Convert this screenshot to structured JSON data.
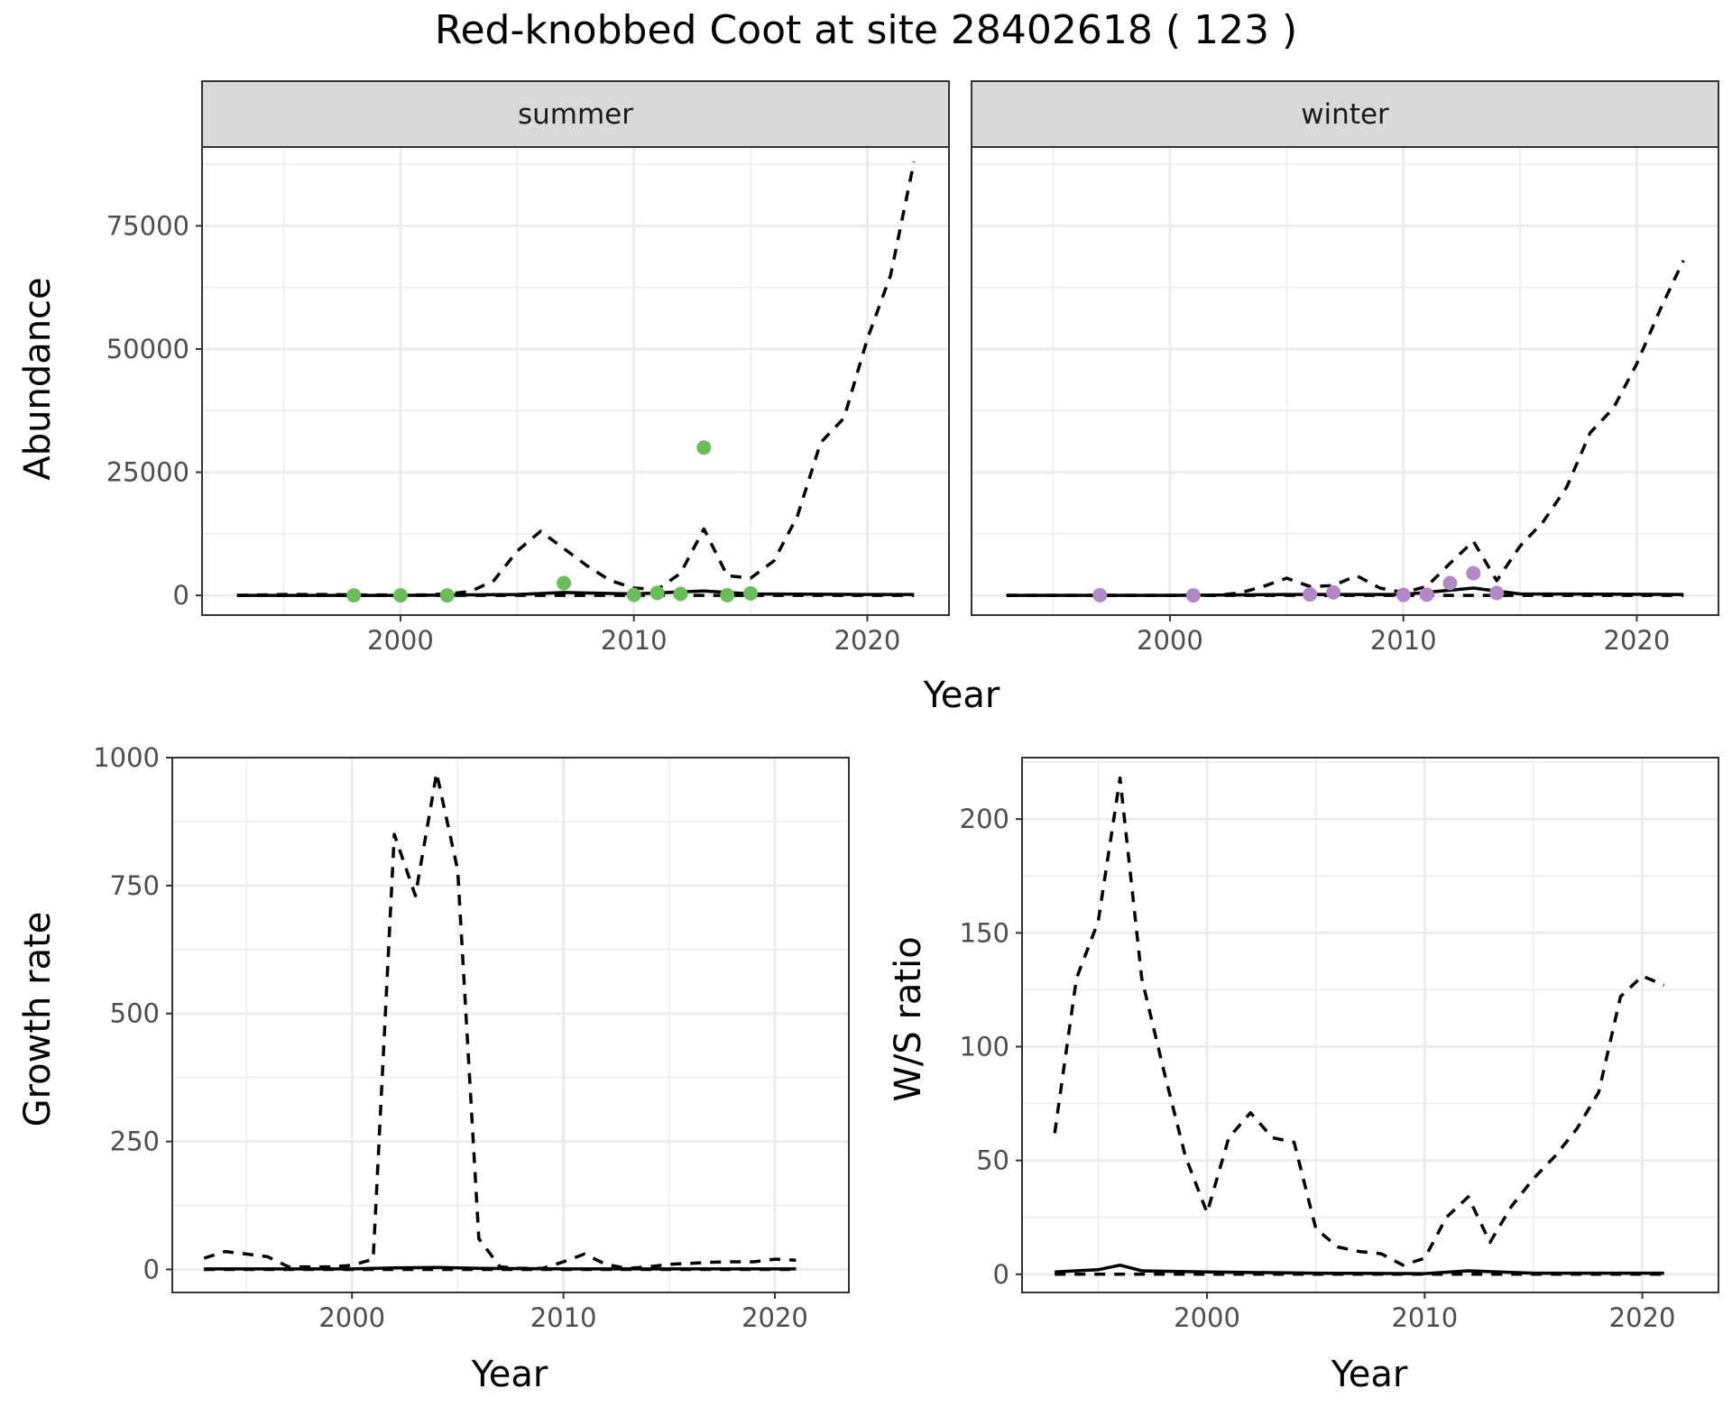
{
  "title": "Red-knobbed Coot at site 28402618 ( 123 )",
  "colors": {
    "summer_points": "#6bbd5a",
    "winter_points": "#b388c6",
    "strip": "#d9d9d9",
    "grid": "#ebebeb",
    "line": "#000000"
  },
  "chart_data": [
    {
      "id": "abundance",
      "type": "line",
      "title": "",
      "xlabel": "Year",
      "ylabel": "Abundance",
      "xlim": [
        1991.5,
        2023.5
      ],
      "ylim": [
        -4000,
        91000
      ],
      "x_ticks": [
        2000,
        2010,
        2020
      ],
      "y_ticks": [
        0,
        25000,
        50000,
        75000
      ],
      "y_tick_labels": [
        "0",
        "25000",
        "50000",
        "75000"
      ],
      "grid": true,
      "facets": [
        {
          "name": "summer",
          "upper_dashed": {
            "x": [
              1993,
              1994,
              1995,
              1996,
              1997,
              1998,
              1999,
              2000,
              2001,
              2002,
              2003,
              2004,
              2005,
              2006,
              2007,
              2008,
              2009,
              2010,
              2011,
              2012,
              2013,
              2014,
              2015,
              2016,
              2017,
              2018,
              2019,
              2020,
              2021,
              2022
            ],
            "y": [
              0,
              100,
              200,
              200,
              200,
              100,
              100,
              100,
              100,
              300,
              800,
              3000,
              9000,
              13000,
              9500,
              6000,
              3000,
              1500,
              1200,
              4500,
              13500,
              4000,
              3500,
              7000,
              16000,
              31000,
              36000,
              52000,
              65000,
              88000
            ]
          },
          "fitted_solid": {
            "x": [
              1993,
              1995,
              2000,
              2005,
              2007,
              2010,
              2013,
              2015,
              2020,
              2022
            ],
            "y": [
              0,
              0,
              0,
              200,
              600,
              300,
              900,
              300,
              200,
              200
            ]
          },
          "lower_dashed": {
            "x": [
              1993,
              2022
            ],
            "y": [
              0,
              0
            ]
          },
          "points": {
            "x": [
              1998,
              2000,
              2002,
              2007,
              2010,
              2011,
              2012,
              2013,
              2014,
              2015
            ],
            "y": [
              0,
              0,
              0,
              2500,
              100,
              500,
              300,
              30000,
              50,
              400
            ]
          }
        },
        {
          "name": "winter",
          "upper_dashed": {
            "x": [
              1993,
              1994,
              1995,
              1996,
              1997,
              1998,
              1999,
              2000,
              2001,
              2002,
              2003,
              2004,
              2005,
              2006,
              2007,
              2008,
              2009,
              2010,
              2011,
              2012,
              2013,
              2014,
              2015,
              2016,
              2017,
              2018,
              2019,
              2020,
              2021,
              2022
            ],
            "y": [
              0,
              0,
              0,
              0,
              0,
              0,
              0,
              0,
              0,
              0,
              500,
              1800,
              3500,
              1800,
              2000,
              4000,
              1500,
              600,
              1800,
              6500,
              11000,
              3000,
              10000,
              15000,
              22000,
              33000,
              38000,
              47000,
              58000,
              68000
            ]
          },
          "fitted_solid": {
            "x": [
              1993,
              2000,
              2005,
              2010,
              2013,
              2015,
              2022
            ],
            "y": [
              0,
              0,
              200,
              200,
              1500,
              300,
              200
            ]
          },
          "lower_dashed": {
            "x": [
              1993,
              2022
            ],
            "y": [
              0,
              0
            ]
          },
          "points": {
            "x": [
              1997,
              2001,
              2006,
              2007,
              2010,
              2011,
              2012,
              2013,
              2014
            ],
            "y": [
              50,
              0,
              200,
              600,
              100,
              150,
              2500,
              4500,
              500
            ]
          }
        }
      ]
    },
    {
      "id": "growth",
      "type": "line",
      "title": "",
      "xlabel": "Year",
      "ylabel": "Growth rate",
      "xlim": [
        1991.5,
        2023.5
      ],
      "ylim": [
        -45,
        1000
      ],
      "x_ticks": [
        2000,
        2010,
        2020
      ],
      "y_ticks": [
        0,
        250,
        500,
        750,
        1000
      ],
      "y_tick_labels": [
        "0",
        "250",
        "500",
        "750",
        "1000"
      ],
      "grid": true,
      "upper_dashed": {
        "x": [
          1993,
          1994,
          1995,
          1996,
          1997,
          1998,
          1999,
          2000,
          2001,
          2002,
          2003,
          2004,
          2005,
          2006,
          2007,
          2008,
          2009,
          2010,
          2011,
          2012,
          2013,
          2014,
          2015,
          2016,
          2017,
          2018,
          2019,
          2020,
          2021
        ],
        "y": [
          22,
          35,
          30,
          25,
          5,
          5,
          5,
          8,
          20,
          850,
          730,
          970,
          780,
          60,
          5,
          2,
          2,
          15,
          30,
          10,
          2,
          5,
          10,
          12,
          14,
          15,
          15,
          20,
          18
        ]
      },
      "fitted_solid": {
        "x": [
          1993,
          1995,
          2000,
          2002,
          2004,
          2006,
          2010,
          2021
        ],
        "y": [
          1,
          1,
          1,
          3,
          4,
          2,
          1,
          1
        ]
      },
      "lower_dashed": {
        "x": [
          1993,
          2021
        ],
        "y": [
          0,
          0
        ]
      }
    },
    {
      "id": "ratio",
      "type": "line",
      "title": "",
      "xlabel": "Year",
      "ylabel": "W/S ratio",
      "xlim": [
        1991.5,
        2023.5
      ],
      "ylim": [
        -8,
        227
      ],
      "x_ticks": [
        2000,
        2010,
        2020
      ],
      "y_ticks": [
        0,
        50,
        100,
        150,
        200
      ],
      "y_tick_labels": [
        "0",
        "50",
        "100",
        "150",
        "200"
      ],
      "grid": true,
      "upper_dashed": {
        "x": [
          1993,
          1994,
          1995,
          1996,
          1997,
          1998,
          1999,
          2000,
          2001,
          2002,
          2003,
          2004,
          2005,
          2006,
          2007,
          2008,
          2009,
          2010,
          2011,
          2012,
          2013,
          2014,
          2015,
          2016,
          2017,
          2018,
          2019,
          2020,
          2021
        ],
        "y": [
          62,
          130,
          155,
          218,
          130,
          90,
          52,
          27,
          60,
          71,
          60,
          58,
          20,
          12,
          10,
          9,
          4,
          7,
          25,
          34,
          14,
          30,
          42,
          52,
          64,
          80,
          122,
          131,
          127
        ]
      },
      "fitted_solid": {
        "x": [
          1993,
          1995,
          1996,
          1997,
          2000,
          2005,
          2010,
          2012,
          2015,
          2021
        ],
        "y": [
          1,
          2,
          4,
          1.5,
          1,
          0.5,
          0.3,
          1.5,
          0.5,
          0.5
        ]
      },
      "lower_dashed": {
        "x": [
          1993,
          2021
        ],
        "y": [
          0,
          0
        ]
      }
    }
  ]
}
